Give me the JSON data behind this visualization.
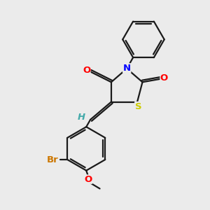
{
  "background_color": "#ebebeb",
  "bond_color": "#1a1a1a",
  "atom_colors": {
    "O": "#ff0000",
    "N": "#0000ff",
    "S": "#cccc00",
    "Br": "#cc7700",
    "H": "#44aaaa"
  },
  "figsize": [
    3.0,
    3.0
  ],
  "dpi": 100
}
